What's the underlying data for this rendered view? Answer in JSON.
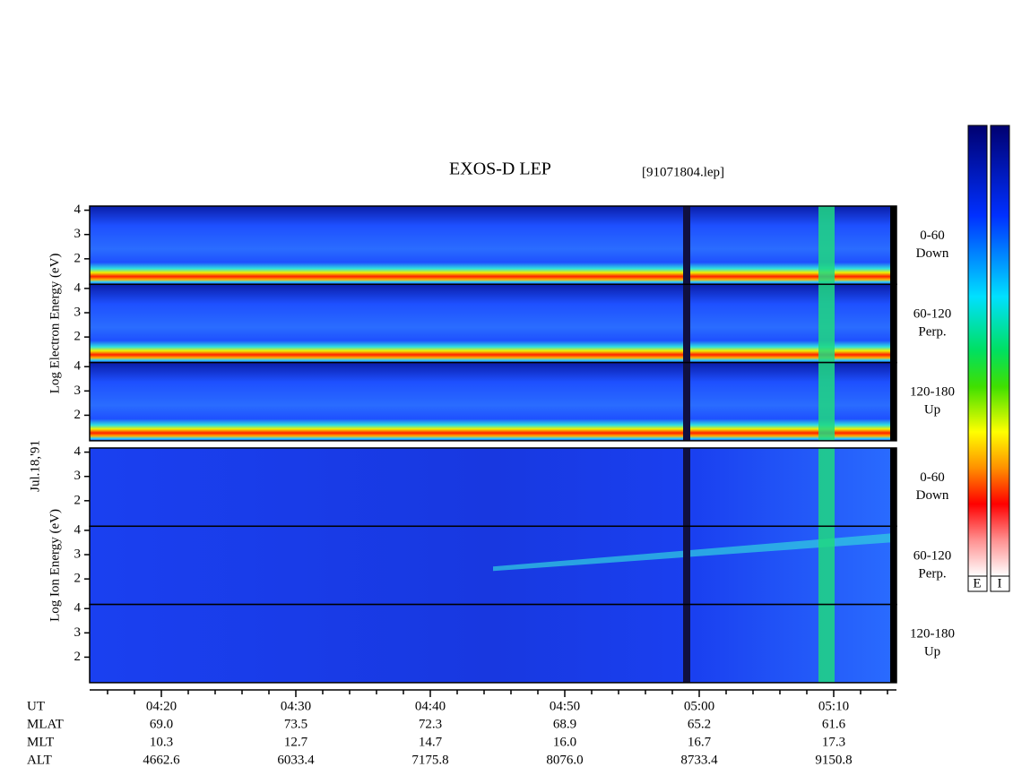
{
  "chart_data": {
    "type": "spectrogram",
    "title": "EXOS-D LEP",
    "subtitle": "[91071804.lep]",
    "date_label": "Jul.18,'91",
    "xlim": [
      254.667,
      314.667
    ],
    "xticks": [
      {
        "value": 260,
        "label": "04:20"
      },
      {
        "value": 270,
        "label": "04:30"
      },
      {
        "value": 280,
        "label": "04:40"
      },
      {
        "value": 290,
        "label": "04:50"
      },
      {
        "value": 300,
        "label": "05:00"
      },
      {
        "value": 310,
        "label": "05:10"
      }
    ],
    "xminor": [
      256,
      258,
      262,
      264,
      266,
      268,
      272,
      274,
      276,
      278,
      282,
      284,
      286,
      288,
      292,
      294,
      296,
      298,
      302,
      304,
      306,
      308,
      312,
      314
    ],
    "ylim": [
      0.95,
      4.17
    ],
    "yticks": [
      2,
      3,
      4
    ],
    "groups": [
      {
        "species": "electron",
        "ylabel": "Log Electron Energy (eV)",
        "panels": [
          [
            "0-60",
            "Down"
          ],
          [
            "60-120",
            "Perp."
          ],
          [
            "120-180",
            "Up"
          ]
        ]
      },
      {
        "species": "ion",
        "ylabel": "Log Ion Energy (eV)",
        "panels": [
          [
            "0-60",
            "Down"
          ],
          [
            "60-120",
            "Perp."
          ],
          [
            "120-180",
            "Up"
          ]
        ]
      }
    ],
    "orbit_table": {
      "row_labels": [
        "UT",
        "MLAT",
        "MLT",
        "ALT"
      ],
      "rows": [
        [
          "69.0",
          "73.5",
          "72.3",
          "68.9",
          "65.2",
          "61.6"
        ],
        [
          "10.3",
          "12.7",
          "14.7",
          "16.0",
          "16.7",
          "17.3"
        ],
        [
          "4662.6",
          "6033.4",
          "7175.8",
          "8076.0",
          "8733.4",
          "9150.8"
        ]
      ]
    },
    "colorbar_labels": [
      "E",
      "I"
    ]
  }
}
